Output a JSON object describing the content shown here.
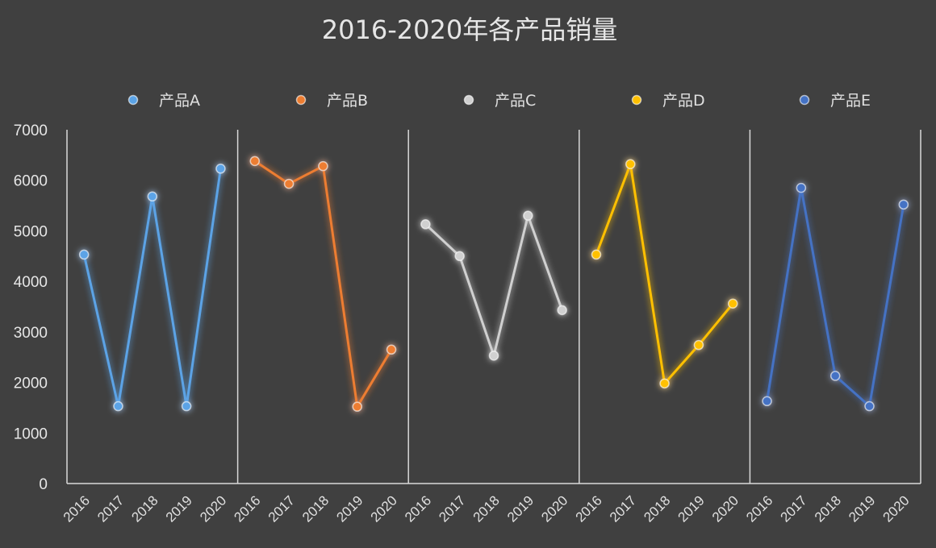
{
  "chart_data": {
    "type": "line",
    "title": "2016-2020年各产品销量",
    "xlabel": "",
    "ylabel": "",
    "ylim": [
      0,
      7000
    ],
    "yticks": [
      0,
      1000,
      2000,
      3000,
      4000,
      5000,
      6000,
      7000
    ],
    "grid": false,
    "legend_position": "top",
    "layout": "small-multiples panels side by side, separated by vertical lines",
    "categories": [
      "2016",
      "2017",
      "2018",
      "2019",
      "2020"
    ],
    "series": [
      {
        "name": "产品A",
        "color": "#5ba3e6",
        "values": [
          4530,
          1530,
          5680,
          1530,
          6230
        ]
      },
      {
        "name": "产品B",
        "color": "#ed7d31",
        "values": [
          6380,
          5930,
          6280,
          1520,
          2650
        ]
      },
      {
        "name": "产品C",
        "color": "#d0d0d0",
        "values": [
          5130,
          4500,
          2530,
          5300,
          3430
        ]
      },
      {
        "name": "产品D",
        "color": "#ffc000",
        "values": [
          4530,
          6320,
          1980,
          2740,
          3560
        ]
      },
      {
        "name": "产品E",
        "color": "#4472c4",
        "values": [
          1630,
          5850,
          2130,
          1530,
          5520
        ]
      }
    ]
  }
}
